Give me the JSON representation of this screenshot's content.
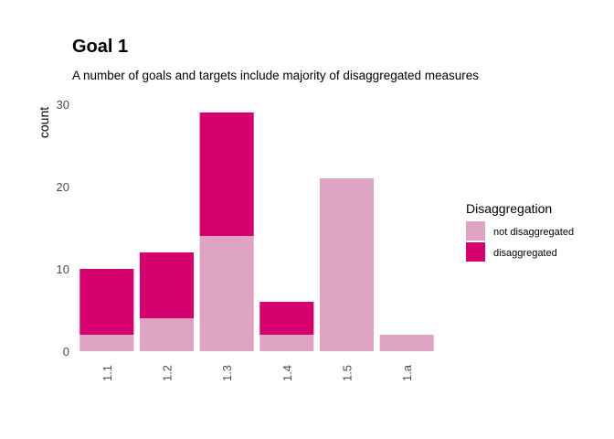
{
  "chart_data": {
    "type": "bar",
    "stacked": true,
    "title": "Goal  1",
    "subtitle": "A number of goals and targets include majority of disaggregated measures",
    "xlabel": "",
    "ylabel": "count",
    "ylim": [
      0,
      30
    ],
    "yticks": [
      0,
      10,
      20,
      30
    ],
    "grid": false,
    "categories": [
      "1.1",
      "1.2",
      "1.3",
      "1.4",
      "1.5",
      "1.a"
    ],
    "series": [
      {
        "name": "not disaggregated",
        "color": "#DFA3C4",
        "values": [
          2,
          4,
          14,
          2,
          21,
          2
        ]
      },
      {
        "name": "disaggregated",
        "color": "#D6006F",
        "values": [
          8,
          8,
          15,
          4,
          0,
          0
        ]
      }
    ],
    "legend": {
      "title": "Disaggregation",
      "position": "right",
      "items": [
        "not disaggregated",
        "disaggregated"
      ]
    }
  }
}
